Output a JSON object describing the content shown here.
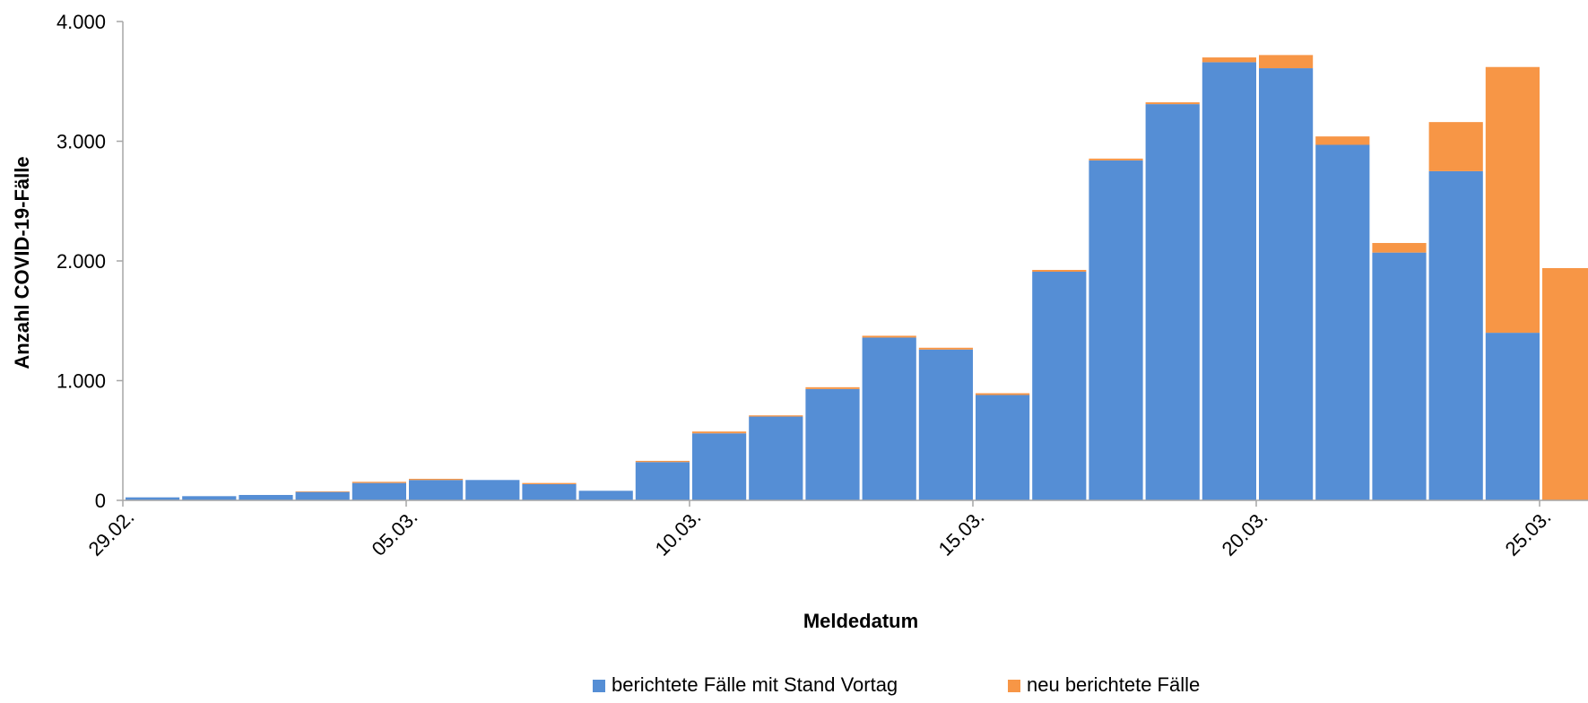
{
  "chart_data": {
    "type": "bar",
    "stacked": true,
    "xlabel": "Meldedatum",
    "ylabel": "Anzahl COVID-19-Fälle",
    "ylim": [
      0,
      4000
    ],
    "y_ticks": [
      0,
      1000,
      2000,
      3000,
      4000
    ],
    "y_tick_labels": [
      "0",
      "1.000",
      "2.000",
      "3.000",
      "4.000"
    ],
    "x_tick_labels": [
      {
        "category": "29.02.",
        "label": "29.02."
      },
      {
        "category": "05.03.",
        "label": "05.03."
      },
      {
        "category": "10.03.",
        "label": "10.03."
      },
      {
        "category": "15.03.",
        "label": "15.03."
      },
      {
        "category": "20.03.",
        "label": "20.03."
      },
      {
        "category": "25.03.",
        "label": "25.03."
      }
    ],
    "categories": [
      "29.02.",
      "01.03.",
      "02.03.",
      "03.03.",
      "04.03.",
      "05.03.",
      "06.03.",
      "07.03.",
      "08.03.",
      "09.03.",
      "10.03.",
      "11.03.",
      "12.03.",
      "13.03.",
      "14.03.",
      "15.03.",
      "16.03.",
      "17.03.",
      "18.03.",
      "19.03.",
      "20.03.",
      "21.03.",
      "22.03.",
      "23.03.",
      "24.03.",
      "25.03."
    ],
    "series": [
      {
        "name": "berichtete Fälle mit Stand Vortag",
        "color": "#558ED5",
        "values": [
          25,
          35,
          45,
          70,
          145,
          170,
          170,
          135,
          80,
          320,
          560,
          700,
          930,
          1360,
          1260,
          880,
          1910,
          2840,
          3310,
          3660,
          3610,
          2970,
          2070,
          2750,
          1400,
          0
        ]
      },
      {
        "name": "neu berichtete Fälle",
        "color": "#F79646",
        "values": [
          0,
          0,
          0,
          5,
          10,
          10,
          0,
          10,
          0,
          10,
          15,
          10,
          15,
          15,
          15,
          15,
          15,
          15,
          15,
          40,
          110,
          70,
          80,
          410,
          2220,
          1940
        ]
      }
    ],
    "grid": false,
    "legend_position": "bottom"
  }
}
